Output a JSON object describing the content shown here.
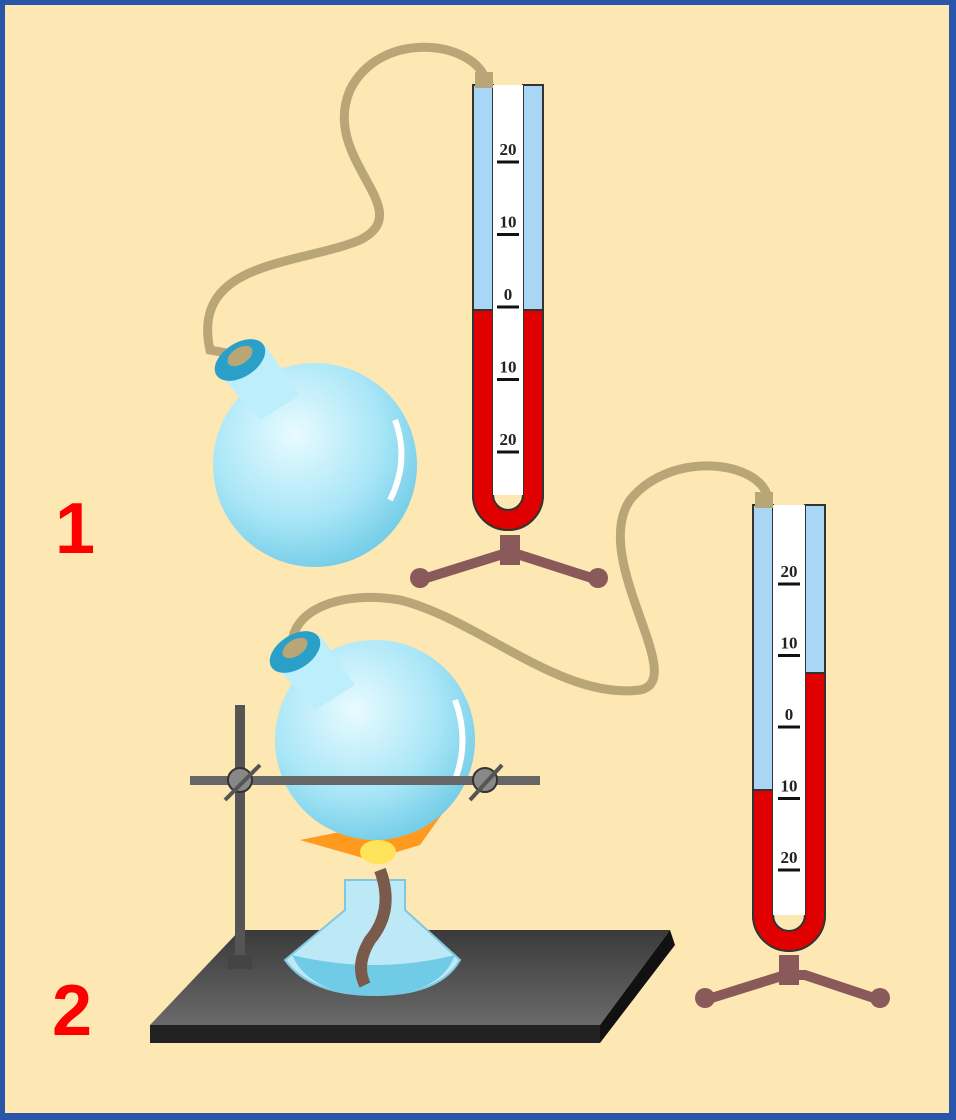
{
  "labels": [
    "1",
    "2"
  ],
  "manometers": [
    {
      "scale": [
        "20",
        "10",
        "0",
        "10",
        "20"
      ]
    },
    {
      "scale": [
        "20",
        "10",
        "0",
        "10",
        "20"
      ]
    }
  ]
}
